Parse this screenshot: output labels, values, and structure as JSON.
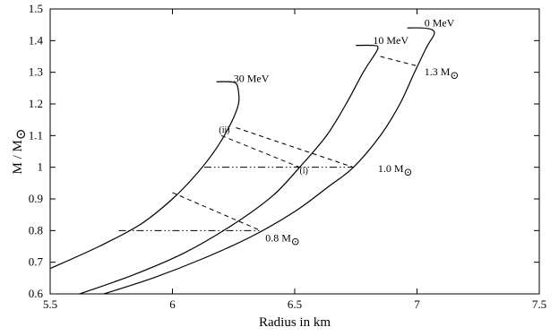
{
  "chart_data": {
    "type": "line",
    "xlabel": "Radius in km",
    "ylabel": "M / M",
    "ylabel_symbol": "⊙",
    "xlim": [
      5.5,
      7.5
    ],
    "ylim": [
      0.6,
      1.5
    ],
    "xticks": [
      "5.5",
      "6",
      "6.5",
      "7",
      "7.5"
    ],
    "yticks": [
      "0.6",
      "0.7",
      "0.8",
      "0.9",
      "1",
      "1.1",
      "1.2",
      "1.3",
      "1.4",
      "1.5"
    ],
    "series": [
      {
        "name": "0 MeV",
        "points": [
          [
            5.72,
            0.6
          ],
          [
            5.92,
            0.65
          ],
          [
            6.12,
            0.71
          ],
          [
            6.32,
            0.78
          ],
          [
            6.5,
            0.86
          ],
          [
            6.64,
            0.94
          ],
          [
            6.74,
            1.0
          ],
          [
            6.85,
            1.1
          ],
          [
            6.93,
            1.2
          ],
          [
            6.99,
            1.3
          ],
          [
            7.04,
            1.38
          ],
          [
            7.07,
            1.42
          ],
          [
            7.06,
            1.435
          ],
          [
            7.02,
            1.44
          ],
          [
            6.96,
            1.44
          ]
        ]
      },
      {
        "name": "10 MeV",
        "points": [
          [
            5.62,
            0.6
          ],
          [
            5.84,
            0.66
          ],
          [
            6.05,
            0.73
          ],
          [
            6.25,
            0.82
          ],
          [
            6.41,
            0.91
          ],
          [
            6.52,
            1.0
          ],
          [
            6.63,
            1.1
          ],
          [
            6.71,
            1.2
          ],
          [
            6.78,
            1.3
          ],
          [
            6.83,
            1.36
          ],
          [
            6.84,
            1.38
          ],
          [
            6.82,
            1.385
          ],
          [
            6.75,
            1.385
          ]
        ]
      },
      {
        "name": "30 MeV",
        "points": [
          [
            5.5,
            0.68
          ],
          [
            5.7,
            0.75
          ],
          [
            5.87,
            0.82
          ],
          [
            6.0,
            0.9
          ],
          [
            6.1,
            0.98
          ],
          [
            6.18,
            1.06
          ],
          [
            6.24,
            1.14
          ],
          [
            6.27,
            1.2
          ],
          [
            6.27,
            1.24
          ],
          [
            6.26,
            1.265
          ],
          [
            6.23,
            1.27
          ],
          [
            6.18,
            1.27
          ]
        ]
      }
    ],
    "dashed_lines": [
      [
        [
          6.85,
          1.35
        ],
        [
          7.0,
          1.32
        ]
      ],
      [
        [
          6.26,
          1.125
        ],
        [
          6.74,
          1.0
        ]
      ],
      [
        [
          6.2,
          1.1
        ],
        [
          6.52,
          1.0
        ]
      ],
      [
        [
          6.0,
          0.92
        ],
        [
          6.36,
          0.8
        ]
      ]
    ],
    "dashdot_lines": [
      [
        [
          6.13,
          1.0
        ],
        [
          6.74,
          1.0
        ]
      ],
      [
        [
          5.78,
          0.8
        ],
        [
          6.36,
          0.8
        ]
      ]
    ],
    "annotations": [
      {
        "text": "0 MeV",
        "x": 7.03,
        "y": 1.445
      },
      {
        "text": "10 MeV",
        "x": 6.82,
        "y": 1.39
      },
      {
        "text": "30 MeV",
        "x": 6.25,
        "y": 1.27
      },
      {
        "text": "(ii)",
        "x": 6.19,
        "y": 1.11
      },
      {
        "text": "(i)",
        "x": 6.52,
        "y": 0.98
      },
      {
        "text": "1.3 M",
        "symbol": "⊙",
        "x": 7.03,
        "y": 1.29
      },
      {
        "text": "1.0 M",
        "symbol": "⊙",
        "x": 6.84,
        "y": 0.985
      },
      {
        "text": "0.8 M",
        "symbol": "⊙",
        "x": 6.38,
        "y": 0.765
      }
    ]
  }
}
